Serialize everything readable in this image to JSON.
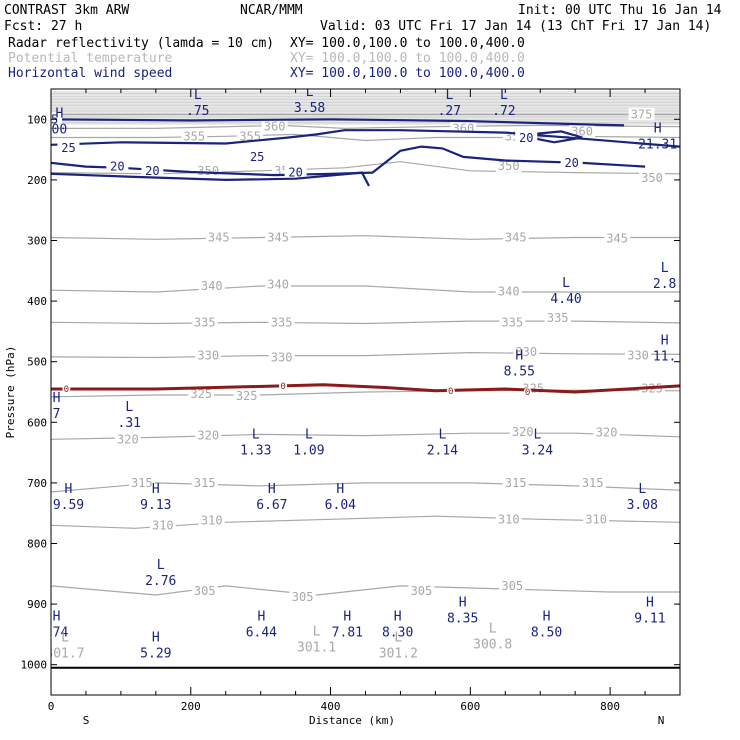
{
  "header": {
    "left1": "CONTRAST  3km ARW",
    "center1": "NCAR/MMM",
    "right1": "Init: 00 UTC Thu 16 Jan 14",
    "left2": "Fcst:   27 h",
    "right2": "Valid: 03 UTC Fri 17 Jan 14 (13 ChT Fri 17 Jan 14)",
    "fields": [
      {
        "name": "Radar reflectivity (lamda = 10 cm)",
        "xy": "XY= 100.0,100.0 to 100.0,400.0",
        "color": "#000000"
      },
      {
        "name": "Potential temperature",
        "xy": "XY= 100.0,100.0 to 100.0,400.0",
        "color": "#b8b8b8"
      },
      {
        "name": "Horizontal wind speed",
        "xy": "XY= 100.0,100.0 to 100.0,400.0",
        "color": "#1a237e"
      }
    ]
  },
  "chart_data": {
    "type": "contour-cross-section",
    "xlabel": "Distance (km)",
    "ylabel": "Pressure (hPa)",
    "xlim": [
      0,
      900
    ],
    "ylim": [
      1050,
      50
    ],
    "x_ticks": [
      0,
      200,
      400,
      600,
      800
    ],
    "y_ticks": [
      100,
      200,
      300,
      400,
      500,
      600,
      700,
      800,
      900,
      1000
    ],
    "end_labels": {
      "left": "S",
      "right": "N"
    },
    "colors": {
      "theta": "#a8a8a8",
      "wind": "#1a237e",
      "zero": "#8b1a1a",
      "shade": "#cfcfcf"
    },
    "theta_lines": [
      {
        "value": 305,
        "pts": [
          [
            0,
            870
          ],
          [
            150,
            885
          ],
          [
            250,
            870
          ],
          [
            380,
            885
          ],
          [
            500,
            870
          ],
          [
            650,
            875
          ],
          [
            800,
            880
          ],
          [
            900,
            880
          ]
        ],
        "labels": [
          [
            220,
            878
          ],
          [
            360,
            888
          ],
          [
            530,
            878
          ],
          [
            660,
            870
          ]
        ]
      },
      {
        "value": 310,
        "pts": [
          [
            0,
            770
          ],
          [
            120,
            775
          ],
          [
            250,
            765
          ],
          [
            400,
            760
          ],
          [
            550,
            755
          ],
          [
            700,
            760
          ],
          [
            900,
            765
          ]
        ],
        "labels": [
          [
            160,
            770
          ],
          [
            230,
            762
          ],
          [
            655,
            760
          ],
          [
            780,
            760
          ]
        ]
      },
      {
        "value": 315,
        "pts": [
          [
            0,
            715
          ],
          [
            150,
            700
          ],
          [
            300,
            705
          ],
          [
            450,
            700
          ],
          [
            600,
            700
          ],
          [
            750,
            705
          ],
          [
            900,
            712
          ]
        ],
        "labels": [
          [
            130,
            700
          ],
          [
            220,
            700
          ],
          [
            665,
            700
          ],
          [
            775,
            700
          ]
        ]
      },
      {
        "value": 320,
        "pts": [
          [
            0,
            628
          ],
          [
            150,
            625
          ],
          [
            300,
            620
          ],
          [
            450,
            622
          ],
          [
            600,
            618
          ],
          [
            750,
            618
          ],
          [
            900,
            624
          ]
        ],
        "labels": [
          [
            110,
            628
          ],
          [
            225,
            622
          ],
          [
            675,
            616
          ],
          [
            795,
            617
          ]
        ]
      },
      {
        "value": 325,
        "pts": [
          [
            0,
            558
          ],
          [
            150,
            555
          ],
          [
            300,
            555
          ],
          [
            450,
            550
          ],
          [
            600,
            548
          ],
          [
            750,
            547
          ],
          [
            900,
            548
          ]
        ],
        "labels": [
          [
            215,
            553
          ],
          [
            280,
            557
          ],
          [
            690,
            544
          ],
          [
            860,
            544
          ]
        ]
      },
      {
        "value": 330,
        "pts": [
          [
            0,
            492
          ],
          [
            150,
            493
          ],
          [
            300,
            490
          ],
          [
            450,
            490
          ],
          [
            600,
            485
          ],
          [
            750,
            487
          ],
          [
            900,
            488
          ]
        ],
        "labels": [
          [
            225,
            490
          ],
          [
            330,
            493
          ],
          [
            680,
            484
          ],
          [
            840,
            490
          ]
        ]
      },
      {
        "value": 335,
        "pts": [
          [
            0,
            435
          ],
          [
            150,
            437
          ],
          [
            300,
            435
          ],
          [
            450,
            437
          ],
          [
            600,
            433
          ],
          [
            750,
            433
          ],
          [
            900,
            436
          ]
        ],
        "labels": [
          [
            220,
            435
          ],
          [
            330,
            435
          ],
          [
            660,
            435
          ],
          [
            725,
            428
          ]
        ]
      },
      {
        "value": 340,
        "pts": [
          [
            0,
            382
          ],
          [
            150,
            385
          ],
          [
            300,
            375
          ],
          [
            450,
            375
          ],
          [
            600,
            385
          ],
          [
            750,
            385
          ],
          [
            900,
            385
          ]
        ],
        "labels": [
          [
            230,
            375
          ],
          [
            325,
            373
          ],
          [
            655,
            384
          ]
        ]
      },
      {
        "value": 345,
        "pts": [
          [
            0,
            295
          ],
          [
            150,
            298
          ],
          [
            300,
            295
          ],
          [
            450,
            292
          ],
          [
            600,
            298
          ],
          [
            750,
            295
          ],
          [
            900,
            295
          ]
        ],
        "labels": [
          [
            240,
            295
          ],
          [
            325,
            295
          ],
          [
            665,
            295
          ],
          [
            810,
            297
          ]
        ]
      },
      {
        "value": 350,
        "pts": [
          [
            0,
            188
          ],
          [
            150,
            190
          ],
          [
            300,
            185
          ],
          [
            420,
            180
          ],
          [
            500,
            170
          ],
          [
            600,
            185
          ],
          [
            750,
            188
          ],
          [
            900,
            190
          ]
        ],
        "labels": [
          [
            225,
            185
          ],
          [
            335,
            185
          ],
          [
            655,
            177
          ],
          [
            860,
            197
          ]
        ]
      },
      {
        "value": 355,
        "pts": [
          [
            0,
            130
          ],
          [
            150,
            130
          ],
          [
            250,
            128
          ],
          [
            350,
            125
          ],
          [
            450,
            135
          ],
          [
            550,
            130
          ],
          [
            650,
            130
          ],
          [
            750,
            128
          ],
          [
            900,
            130
          ]
        ],
        "labels": [
          [
            205,
            128
          ],
          [
            285,
            128
          ],
          [
            665,
            128
          ]
        ]
      },
      {
        "value": 360,
        "pts": [
          [
            0,
            115
          ],
          [
            150,
            115
          ],
          [
            330,
            110
          ],
          [
            420,
            115
          ],
          [
            550,
            112
          ],
          [
            700,
            110
          ],
          [
            900,
            112
          ]
        ],
        "labels": [
          [
            320,
            112
          ],
          [
            590,
            115
          ],
          [
            760,
            120
          ]
        ]
      },
      {
        "value": 375,
        "pts": [
          [
            0,
            92
          ],
          [
            300,
            92
          ],
          [
            600,
            92
          ],
          [
            900,
            92
          ]
        ],
        "labels": [
          [
            845,
            92
          ]
        ]
      }
    ],
    "wind_contours": [
      {
        "value": 25,
        "pts": [
          [
            0,
            100
          ],
          [
            200,
            102
          ],
          [
            400,
            100
          ],
          [
            600,
            103
          ],
          [
            750,
            108
          ],
          [
            820,
            110
          ]
        ],
        "labels": [
          [
            0,
            100
          ]
        ]
      },
      {
        "value": 25,
        "pts": [
          [
            0,
            142
          ],
          [
            100,
            138
          ],
          [
            250,
            140
          ],
          [
            340,
            130
          ],
          [
            380,
            125
          ],
          [
            420,
            118
          ],
          [
            500,
            118
          ],
          [
            650,
            122
          ],
          [
            760,
            132
          ],
          [
            900,
            145
          ]
        ],
        "labels": [
          [
            25,
            147
          ],
          [
            295,
            162
          ]
        ]
      },
      {
        "value": 20,
        "pts": [
          [
            0,
            172
          ],
          [
            50,
            178
          ],
          [
            100,
            180
          ],
          [
            200,
            187
          ],
          [
            320,
            192
          ],
          [
            400,
            190
          ],
          [
            460,
            188
          ],
          [
            500,
            152
          ],
          [
            530,
            145
          ],
          [
            560,
            148
          ],
          [
            590,
            162
          ],
          [
            650,
            168
          ],
          [
            760,
            172
          ],
          [
            850,
            178
          ]
        ],
        "labels": [
          [
            95,
            178
          ],
          [
            145,
            185
          ],
          [
            350,
            188
          ],
          [
            745,
            172
          ]
        ]
      },
      {
        "value": 20,
        "pts": [
          [
            0,
            190
          ],
          [
            120,
            195
          ],
          [
            250,
            200
          ],
          [
            350,
            198
          ],
          [
            445,
            188
          ],
          [
            455,
            210
          ]
        ],
        "labels": []
      },
      {
        "value": 20,
        "pts": [
          [
            685,
            125
          ],
          [
            730,
            120
          ],
          [
            760,
            130
          ],
          [
            720,
            138
          ],
          [
            685,
            130
          ]
        ],
        "labels": [
          [
            680,
            131
          ]
        ]
      }
    ],
    "zero_line": {
      "value": 0,
      "pts": [
        [
          0,
          545
        ],
        [
          150,
          545
        ],
        [
          330,
          540
        ],
        [
          390,
          538
        ],
        [
          470,
          542
        ],
        [
          550,
          548
        ],
        [
          650,
          545
        ],
        [
          750,
          550
        ],
        [
          900,
          540
        ]
      ],
      "labels": [
        [
          22,
          545
        ],
        [
          332,
          540
        ],
        [
          572,
          548
        ],
        [
          682,
          550
        ]
      ]
    },
    "annotations": [
      {
        "type": "L",
        "value": ".75",
        "x": 210,
        "p": 70
      },
      {
        "type": "L",
        "value": "3.58",
        "x": 370,
        "p": 65
      },
      {
        "type": "L",
        "value": ".27",
        "x": 570,
        "p": 70
      },
      {
        "type": "L",
        "value": ".72",
        "x": 648,
        "p": 70
      },
      {
        "type": "H",
        "value": "21.31",
        "x": 868,
        "p": 125
      },
      {
        "type": "H",
        "value": "00",
        "x": 12,
        "p": 100
      },
      {
        "type": "L",
        "value": "4.40",
        "x": 737,
        "p": 380
      },
      {
        "type": "L",
        "value": "2.8",
        "x": 878,
        "p": 355
      },
      {
        "type": "H",
        "value": "11.",
        "x": 878,
        "p": 475
      },
      {
        "type": "H",
        "value": "8.55",
        "x": 670,
        "p": 500
      },
      {
        "type": "H",
        "value": "7",
        "x": 8,
        "p": 570
      },
      {
        "type": "L",
        "value": ".31",
        "x": 112,
        "p": 585
      },
      {
        "type": "L",
        "value": "1.33",
        "x": 293,
        "p": 630
      },
      {
        "type": "L",
        "value": "1.09",
        "x": 369,
        "p": 630
      },
      {
        "type": "L",
        "value": "2.14",
        "x": 560,
        "p": 630
      },
      {
        "type": "L",
        "value": "3.24",
        "x": 696,
        "p": 630
      },
      {
        "type": "H",
        "value": "9.59",
        "x": 25,
        "p": 720
      },
      {
        "type": "H",
        "value": "9.13",
        "x": 150,
        "p": 720
      },
      {
        "type": "H",
        "value": "6.67",
        "x": 316,
        "p": 720
      },
      {
        "type": "H",
        "value": "6.04",
        "x": 414,
        "p": 720
      },
      {
        "type": "L",
        "value": "3.08",
        "x": 846,
        "p": 720
      },
      {
        "type": "L",
        "value": "2.76",
        "x": 157,
        "p": 845
      },
      {
        "type": "H",
        "value": "8.35",
        "x": 589,
        "p": 907
      },
      {
        "type": "H",
        "value": "9.11",
        "x": 857,
        "p": 907
      },
      {
        "type": "H",
        "value": "6.44",
        "x": 301,
        "p": 930
      },
      {
        "type": "H",
        "value": "7.81",
        "x": 424,
        "p": 930
      },
      {
        "type": "H",
        "value": "8.30",
        "x": 496,
        "p": 930
      },
      {
        "type": "H",
        "value": "8.50",
        "x": 709,
        "p": 930
      },
      {
        "type": "H",
        "value": ".74",
        "x": 8,
        "p": 930
      },
      {
        "type": "H",
        "value": "5.29",
        "x": 150,
        "p": 965
      },
      {
        "type": "L",
        "value": "301.7",
        "x": 20,
        "p": 965,
        "gray": true
      },
      {
        "type": "L",
        "value": "301.1",
        "x": 380,
        "p": 955,
        "gray": true
      },
      {
        "type": "L",
        "value": "301.2",
        "x": 497,
        "p": 965,
        "gray": true
      },
      {
        "type": "L",
        "value": "300.8",
        "x": 632,
        "p": 950,
        "gray": true
      }
    ]
  }
}
